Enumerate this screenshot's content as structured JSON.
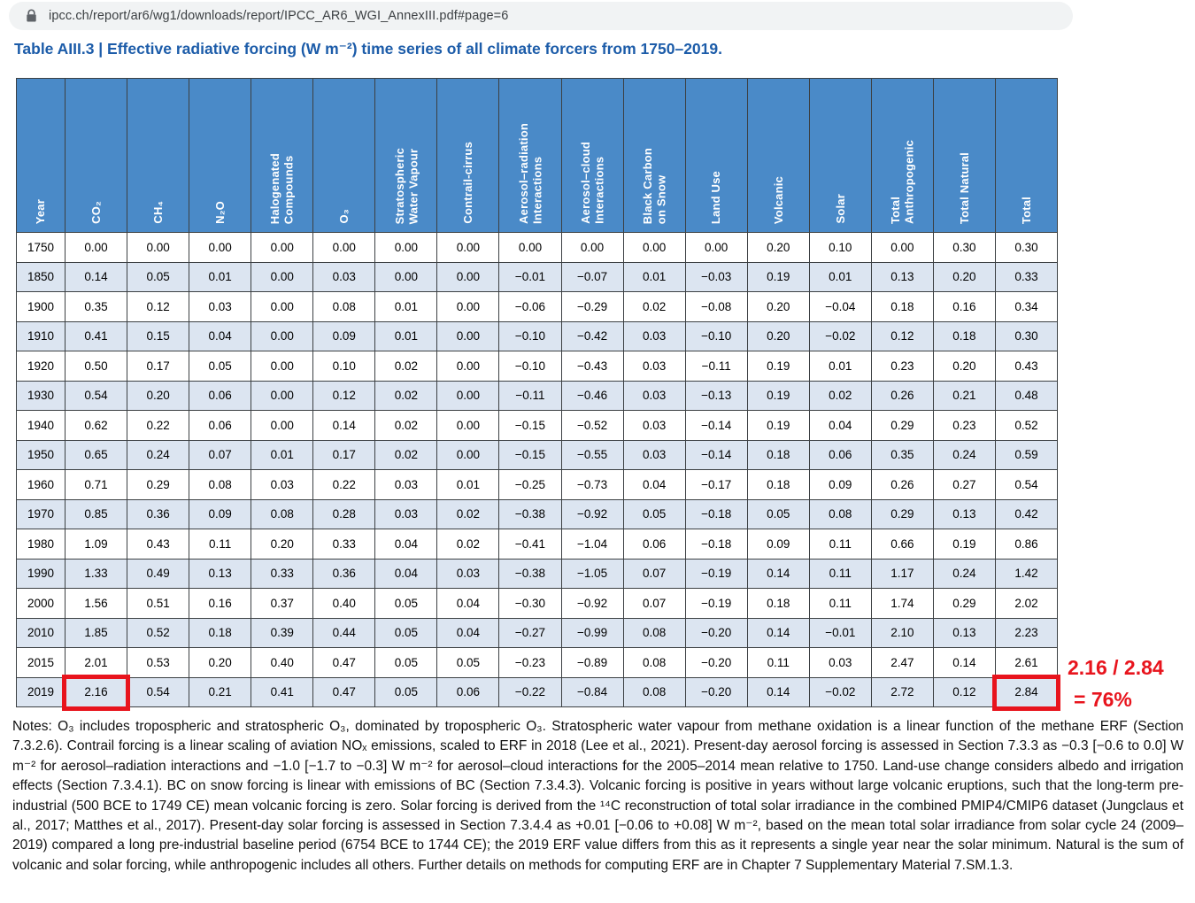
{
  "browser": {
    "url": "ipcc.ch/report/ar6/wg1/downloads/report/IPCC_AR6_WGI_AnnexIII.pdf#page=6"
  },
  "document": {
    "table_title": "Table AIII.3 | Effective radiative forcing (W m⁻²) time series of all climate forcers from 1750–2019.",
    "notes": "Notes: O₃ includes tropospheric and stratospheric O₃, dominated by tropospheric O₃. Stratospheric water vapour from methane oxidation is a linear function of the methane ERF (Section 7.3.2.6). Contrail forcing is a linear scaling of aviation NOₓ emissions, scaled to ERF in 2018 (Lee et al., 2021). Present-day aerosol forcing is assessed in Section 7.3.3 as −0.3 [−0.6 to 0.0] W m⁻² for aerosol–radiation interactions and −1.0 [−1.7 to −0.3] W m⁻² for aerosol–cloud interactions for the 2005–2014 mean relative to 1750. Land-use change considers albedo and irrigation effects (Section 7.3.4.1). BC on snow forcing is linear with emissions of BC (Section 7.3.4.3). Volcanic forcing is positive in years without large volcanic eruptions, such that the long-term pre-industrial (500 BCE to 1749 CE) mean volcanic forcing is zero. Solar forcing is derived from the ¹⁴C reconstruction of total solar irradiance in the combined PMIP4/CMIP6 dataset (Jungclaus et al., 2017; Matthes et al., 2017). Present-day solar forcing is assessed in Section 7.3.4.4 as +0.01 [−0.06 to +0.08] W m⁻², based on the mean total solar irradiance from solar cycle 24 (2009–2019) compared a long pre-industrial baseline period (6754 BCE to 1744 CE); the 2019 ERF value differs from this as it represents a single year near the solar minimum. Natural is the sum of volcanic and solar forcing, while anthropogenic includes all others. Further details on methods for computing ERF are in Chapter 7 Supplementary Material 7.SM.1.3."
  },
  "table": {
    "columns": [
      "Year",
      "CO₂",
      "CH₄",
      "N₂O",
      "Halogenated\nCompounds",
      "O₃",
      "Stratospheric\nWater Vapour",
      "Contrail-cirrus",
      "Aerosol–radiation\nInteractions",
      "Aerosol–cloud\nInteractions",
      "Black Carbon\non Snow",
      "Land Use",
      "Volcanic",
      "Solar",
      "Total\nAnthropogenic",
      "Total Natural",
      "Total"
    ],
    "rows": [
      [
        "1750",
        "0.00",
        "0.00",
        "0.00",
        "0.00",
        "0.00",
        "0.00",
        "0.00",
        "0.00",
        "0.00",
        "0.00",
        "0.00",
        "0.20",
        "0.10",
        "0.00",
        "0.30",
        "0.30"
      ],
      [
        "1850",
        "0.14",
        "0.05",
        "0.01",
        "0.00",
        "0.03",
        "0.00",
        "0.00",
        "−0.01",
        "−0.07",
        "0.01",
        "−0.03",
        "0.19",
        "0.01",
        "0.13",
        "0.20",
        "0.33"
      ],
      [
        "1900",
        "0.35",
        "0.12",
        "0.03",
        "0.00",
        "0.08",
        "0.01",
        "0.00",
        "−0.06",
        "−0.29",
        "0.02",
        "−0.08",
        "0.20",
        "−0.04",
        "0.18",
        "0.16",
        "0.34"
      ],
      [
        "1910",
        "0.41",
        "0.15",
        "0.04",
        "0.00",
        "0.09",
        "0.01",
        "0.00",
        "−0.10",
        "−0.42",
        "0.03",
        "−0.10",
        "0.20",
        "−0.02",
        "0.12",
        "0.18",
        "0.30"
      ],
      [
        "1920",
        "0.50",
        "0.17",
        "0.05",
        "0.00",
        "0.10",
        "0.02",
        "0.00",
        "−0.10",
        "−0.43",
        "0.03",
        "−0.11",
        "0.19",
        "0.01",
        "0.23",
        "0.20",
        "0.43"
      ],
      [
        "1930",
        "0.54",
        "0.20",
        "0.06",
        "0.00",
        "0.12",
        "0.02",
        "0.00",
        "−0.11",
        "−0.46",
        "0.03",
        "−0.13",
        "0.19",
        "0.02",
        "0.26",
        "0.21",
        "0.48"
      ],
      [
        "1940",
        "0.62",
        "0.22",
        "0.06",
        "0.00",
        "0.14",
        "0.02",
        "0.00",
        "−0.15",
        "−0.52",
        "0.03",
        "−0.14",
        "0.19",
        "0.04",
        "0.29",
        "0.23",
        "0.52"
      ],
      [
        "1950",
        "0.65",
        "0.24",
        "0.07",
        "0.01",
        "0.17",
        "0.02",
        "0.00",
        "−0.15",
        "−0.55",
        "0.03",
        "−0.14",
        "0.18",
        "0.06",
        "0.35",
        "0.24",
        "0.59"
      ],
      [
        "1960",
        "0.71",
        "0.29",
        "0.08",
        "0.03",
        "0.22",
        "0.03",
        "0.01",
        "−0.25",
        "−0.73",
        "0.04",
        "−0.17",
        "0.18",
        "0.09",
        "0.26",
        "0.27",
        "0.54"
      ],
      [
        "1970",
        "0.85",
        "0.36",
        "0.09",
        "0.08",
        "0.28",
        "0.03",
        "0.02",
        "−0.38",
        "−0.92",
        "0.05",
        "−0.18",
        "0.05",
        "0.08",
        "0.29",
        "0.13",
        "0.42"
      ],
      [
        "1980",
        "1.09",
        "0.43",
        "0.11",
        "0.20",
        "0.33",
        "0.04",
        "0.02",
        "−0.41",
        "−1.04",
        "0.06",
        "−0.18",
        "0.09",
        "0.11",
        "0.66",
        "0.19",
        "0.86"
      ],
      [
        "1990",
        "1.33",
        "0.49",
        "0.13",
        "0.33",
        "0.36",
        "0.04",
        "0.03",
        "−0.38",
        "−1.05",
        "0.07",
        "−0.19",
        "0.14",
        "0.11",
        "1.17",
        "0.24",
        "1.42"
      ],
      [
        "2000",
        "1.56",
        "0.51",
        "0.16",
        "0.37",
        "0.40",
        "0.05",
        "0.04",
        "−0.30",
        "−0.92",
        "0.07",
        "−0.19",
        "0.18",
        "0.11",
        "1.74",
        "0.29",
        "2.02"
      ],
      [
        "2010",
        "1.85",
        "0.52",
        "0.18",
        "0.39",
        "0.44",
        "0.05",
        "0.04",
        "−0.27",
        "−0.99",
        "0.08",
        "−0.20",
        "0.14",
        "−0.01",
        "2.10",
        "0.13",
        "2.23"
      ],
      [
        "2015",
        "2.01",
        "0.53",
        "0.20",
        "0.40",
        "0.47",
        "0.05",
        "0.05",
        "−0.23",
        "−0.89",
        "0.08",
        "−0.20",
        "0.11",
        "0.03",
        "2.47",
        "0.14",
        "2.61"
      ],
      [
        "2019",
        "2.16",
        "0.54",
        "0.21",
        "0.41",
        "0.47",
        "0.05",
        "0.06",
        "−0.22",
        "−0.84",
        "0.08",
        "−0.20",
        "0.14",
        "−0.02",
        "2.72",
        "0.12",
        "2.84"
      ]
    ]
  },
  "highlights": {
    "color": "#e8141d",
    "cells": [
      {
        "row": 15,
        "col": 1,
        "value": "2.16"
      },
      {
        "row": 15,
        "col": 16,
        "value": "2.84"
      }
    ]
  },
  "annotation": {
    "line1": "2.16 / 2.84",
    "line2": "= 76%",
    "color": "#e8141d"
  },
  "colors": {
    "header_bg": "#4a8ac8",
    "alt_row_bg": "#dce5f1",
    "grid": "#3c4043",
    "title_blue": "#1c5ca9",
    "url_bar_bg": "#f1f3f4",
    "highlight_red": "#e8141d"
  }
}
